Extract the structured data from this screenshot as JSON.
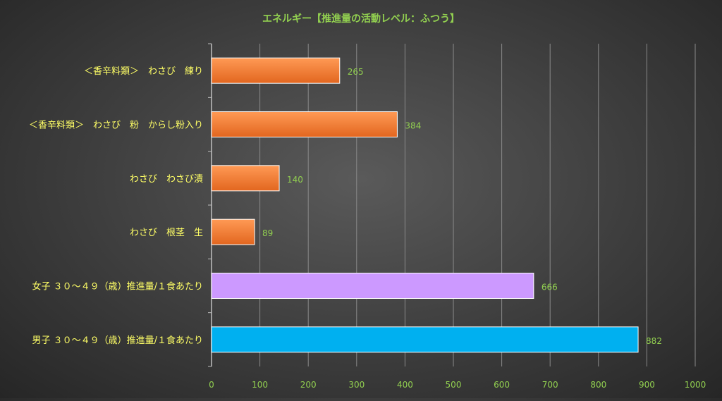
{
  "chart_data": {
    "type": "bar",
    "orientation": "horizontal",
    "title": "エネルギー【推進量の活動レベル：ふつう】",
    "categories": [
      "＜香辛料類＞　わさび　練り",
      "＜香辛料類＞　わさび　粉　からし粉入り",
      "わさび　わさび漬",
      "わさび　根茎　生",
      "女子 ３０～４９（歳）推進量/１食あたり",
      "男子 ３０～４９（歳）推進量/１食あたり"
    ],
    "values": [
      265,
      384,
      140,
      89,
      666,
      882
    ],
    "data_labels": [
      "265",
      "384",
      "140",
      "89",
      "666",
      "882"
    ],
    "bar_colors": [
      "#f07a30",
      "#f07a30",
      "#f07a30",
      "#f07a30",
      "#cc99ff",
      "#00b0f0"
    ],
    "xlim": [
      0,
      1000
    ],
    "x_ticks": [
      "0",
      "100",
      "200",
      "300",
      "400",
      "500",
      "600",
      "700",
      "800",
      "900",
      "1000"
    ],
    "grid": true,
    "legend": "none",
    "colors": {
      "title": "#92d050",
      "category_label": "#ffff66",
      "tick_label": "#92d050",
      "grid": "#8a8a8a"
    }
  }
}
